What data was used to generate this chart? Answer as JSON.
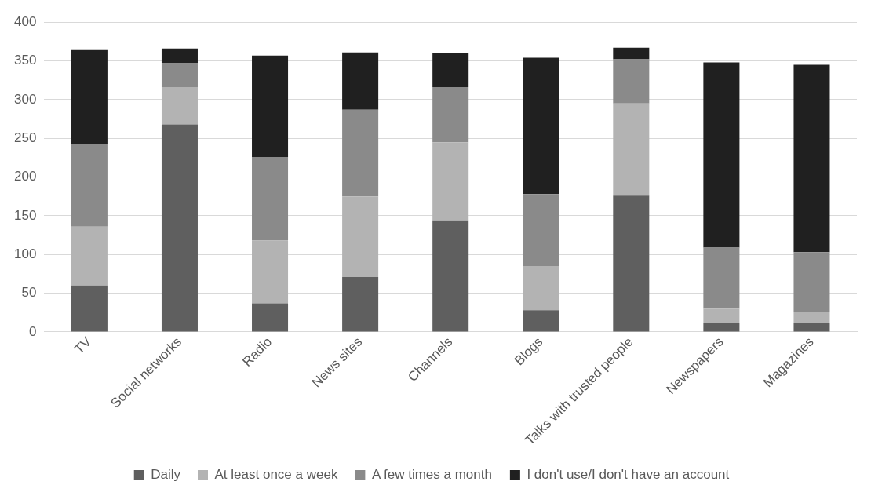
{
  "chart_data": {
    "type": "bar",
    "stacked": true,
    "categories": [
      "TV",
      "Social networks",
      "Radio",
      "News sites",
      "Channels",
      "Blogs",
      "Talks with trusted people",
      "Newspapers",
      "Magazines"
    ],
    "series": [
      {
        "name": "Daily",
        "color": "#5f5f5f",
        "values": [
          60,
          268,
          37,
          71,
          144,
          28,
          176,
          11,
          12
        ]
      },
      {
        "name": "At least once a week",
        "color": "#b3b3b3",
        "values": [
          76,
          48,
          81,
          104,
          101,
          57,
          119,
          19,
          14
        ]
      },
      {
        "name": "A few times a month",
        "color": "#8a8a8a",
        "values": [
          107,
          31,
          108,
          112,
          71,
          93,
          57,
          79,
          77
        ]
      },
      {
        "name": "I don't use/I don't have an account",
        "color": "#202020",
        "values": [
          121,
          19,
          131,
          74,
          44,
          176,
          15,
          239,
          242
        ]
      }
    ],
    "ylim": [
      0,
      400
    ],
    "yticks": [
      0,
      50,
      100,
      150,
      200,
      250,
      300,
      350,
      400
    ],
    "grid": "y",
    "legend": "bottom"
  }
}
